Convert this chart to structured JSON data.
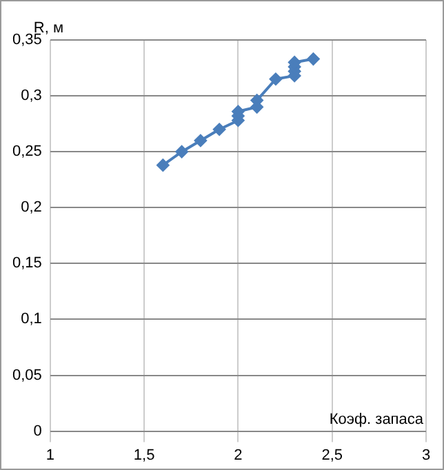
{
  "chart_data": {
    "type": "line",
    "xlabel": "Коэф. запаса",
    "ylabel": "R, м",
    "series": [
      {
        "color": "#4a7ebb",
        "marker": "diamond",
        "line_style": "solid",
        "x": [
          1.6,
          1.7,
          1.8,
          1.9,
          2.0,
          2.0,
          2.0,
          2.1,
          2.1,
          2.2,
          2.3,
          2.3,
          2.3,
          2.3,
          2.4
        ],
        "values": [
          0.238,
          0.25,
          0.26,
          0.27,
          0.278,
          0.282,
          0.286,
          0.29,
          0.296,
          0.315,
          0.318,
          0.322,
          0.326,
          0.33,
          0.333
        ]
      }
    ],
    "xlim": [
      1,
      3
    ],
    "xticks": [
      1,
      {
        "value": 1.5,
        "label": "1,5"
      },
      2,
      {
        "value": 2.5,
        "label": "2,5"
      },
      3
    ],
    "ylim": [
      0,
      0.35
    ],
    "yticks": [
      0,
      {
        "value": 0.05,
        "label": "0,05"
      },
      {
        "value": 0.1,
        "label": "0,1"
      },
      {
        "value": 0.15,
        "label": "0,15"
      },
      {
        "value": 0.2,
        "label": "0,2"
      },
      {
        "value": 0.25,
        "label": "0,25"
      },
      {
        "value": 0.3,
        "label": "0,3"
      },
      {
        "value": 0.35,
        "label": "0,35"
      }
    ],
    "grid": true,
    "legend": false
  }
}
